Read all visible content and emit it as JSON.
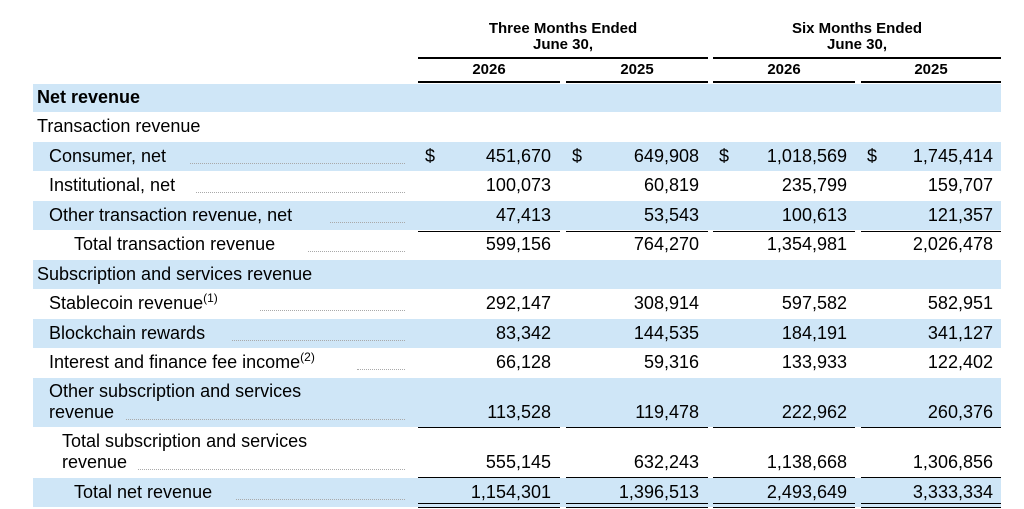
{
  "header": {
    "group1_line1": "Three Months Ended",
    "group1_line2": "June 30,",
    "group2_line1": "Six Months Ended",
    "group2_line2": "June 30,",
    "years": [
      "2026",
      "2025",
      "2026",
      "2025"
    ]
  },
  "rows": {
    "net_revenue": {
      "label": "Net revenue"
    },
    "transaction_revenue": {
      "label": "Transaction revenue"
    },
    "consumer_net": {
      "label": "Consumer, net",
      "currency": "$",
      "values": [
        "451,670",
        "649,908",
        "1,018,569",
        "1,745,414"
      ]
    },
    "institutional_net": {
      "label": "Institutional, net",
      "values": [
        "100,073",
        "60,819",
        "235,799",
        "159,707"
      ]
    },
    "other_transaction": {
      "label": "Other transaction revenue, net",
      "values": [
        "47,413",
        "53,543",
        "100,613",
        "121,357"
      ]
    },
    "total_transaction": {
      "label": "Total transaction revenue",
      "values": [
        "599,156",
        "764,270",
        "1,354,981",
        "2,026,478"
      ]
    },
    "subscription_services": {
      "label": "Subscription and services revenue"
    },
    "stablecoin": {
      "label": "Stablecoin revenue",
      "footnote": "(1)",
      "values": [
        "292,147",
        "308,914",
        "597,582",
        "582,951"
      ]
    },
    "blockchain_rewards": {
      "label": "Blockchain rewards",
      "values": [
        "83,342",
        "144,535",
        "184,191",
        "341,127"
      ]
    },
    "interest_finance": {
      "label": "Interest and finance fee income",
      "footnote": "(2)",
      "values": [
        "66,128",
        "59,316",
        "133,933",
        "122,402"
      ]
    },
    "other_subscription": {
      "label_line1": "Other subscription and services",
      "label_line2": "revenue",
      "values": [
        "113,528",
        "119,478",
        "222,962",
        "260,376"
      ]
    },
    "total_subscription": {
      "label_line1": "Total subscription and services",
      "label_line2": "revenue",
      "values": [
        "555,145",
        "632,243",
        "1,138,668",
        "1,306,856"
      ]
    },
    "total_net_revenue": {
      "label": "Total net revenue",
      "values": [
        "1,154,301",
        "1,396,513",
        "2,493,649",
        "3,333,334"
      ]
    }
  },
  "colors": {
    "shade": "#cfe6f7",
    "text": "#000000",
    "leader": "#a9a9a9"
  }
}
